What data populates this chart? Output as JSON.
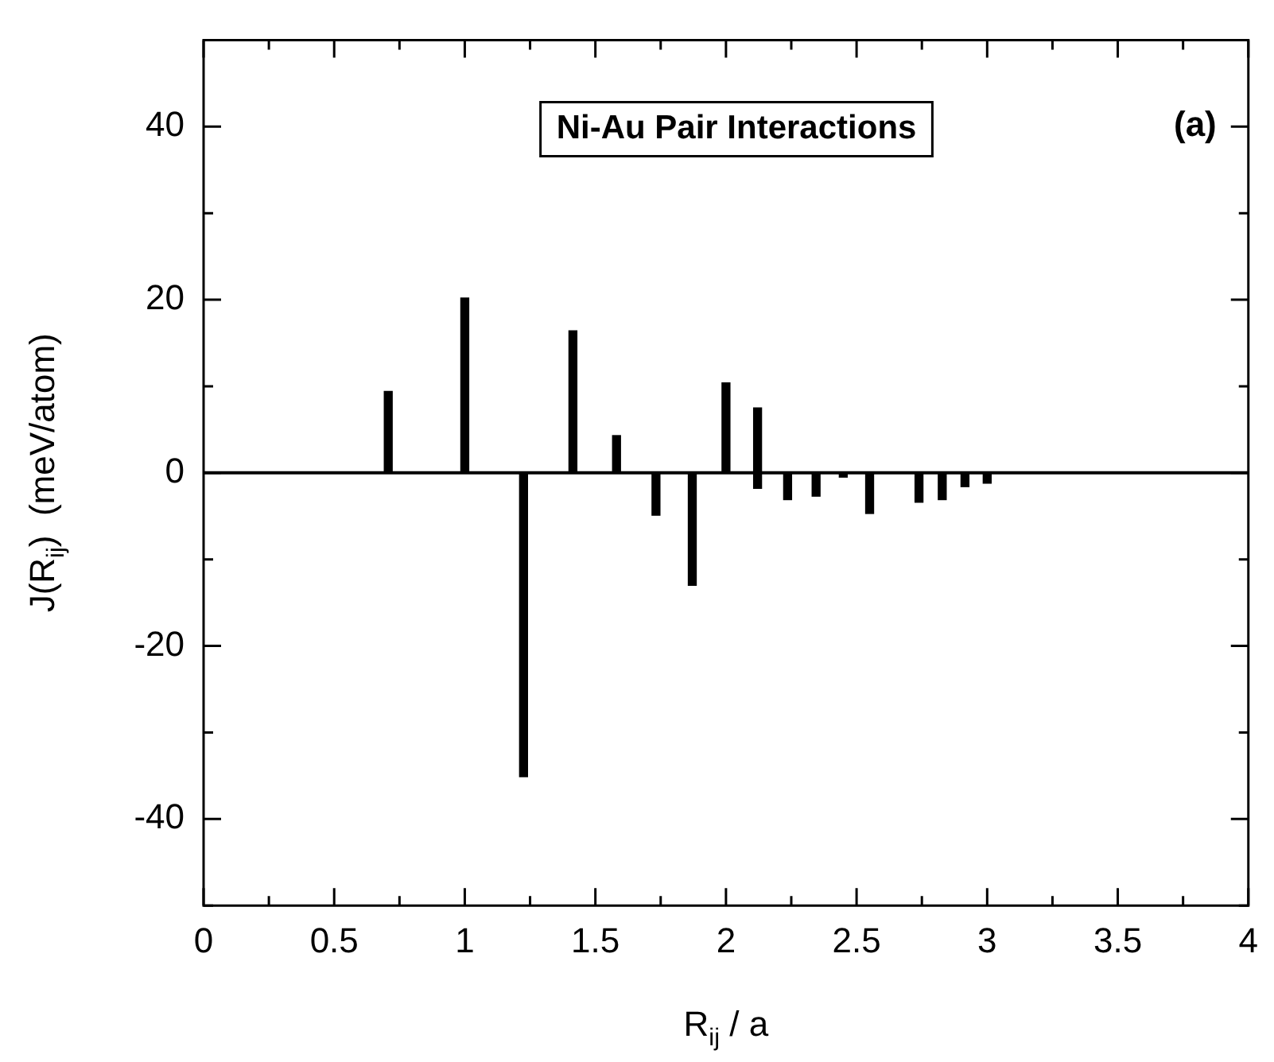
{
  "chart_data": {
    "type": "bar",
    "title": "Ni-Au Pair Interactions",
    "annotations": [
      "(a)"
    ],
    "xlabel": "R$_{ij}$ / a",
    "ylabel": "J(R$_{ij}$)  (meV/atom)",
    "x": [
      0.707,
      1.0,
      1.225,
      1.414,
      1.581,
      1.732,
      1.871,
      2.0,
      2.121,
      2.236,
      2.345,
      2.449,
      2.55,
      2.739,
      2.828,
      2.915,
      3.0
    ],
    "base": [
      0,
      0,
      0,
      0,
      0,
      0,
      0,
      0,
      -1.8,
      0,
      0,
      0,
      0,
      0,
      0,
      0,
      0
    ],
    "values": [
      9.4,
      20.2,
      -35.1,
      16.4,
      4.3,
      -4.9,
      -13,
      10.4,
      9.3,
      -3.1,
      -2.7,
      -0.5,
      -4.7,
      -3.4,
      -3.1,
      -1.6,
      -1.2
    ],
    "color": "#000000",
    "xlim": [
      0,
      4
    ],
    "xticks": [
      0,
      {
        "value": 0.25,
        "label": null
      },
      0.5,
      {
        "value": 0.75,
        "label": null
      },
      1,
      {
        "value": 1.25,
        "label": null
      },
      1.5,
      {
        "value": 1.75,
        "label": null
      },
      2,
      {
        "value": 2.25,
        "label": null
      },
      2.5,
      {
        "value": 2.75,
        "label": null
      },
      3,
      {
        "value": 3.25,
        "label": null
      },
      3.5,
      {
        "value": 3.75,
        "label": null
      },
      4
    ],
    "ylim": [
      -50,
      50
    ],
    "yticks": [
      {
        "value": -50,
        "label": null
      },
      -40,
      {
        "value": -30,
        "label": null
      },
      -20,
      {
        "value": -10,
        "label": null
      },
      0,
      {
        "value": 10,
        "label": null
      },
      20,
      {
        "value": 30,
        "label": null
      },
      40,
      {
        "value": 50,
        "label": null
      }
    ],
    "ref_lines": [
      {
        "axis": "y",
        "value": 0,
        "color": "#000000"
      }
    ],
    "grid": false,
    "legend": false
  }
}
